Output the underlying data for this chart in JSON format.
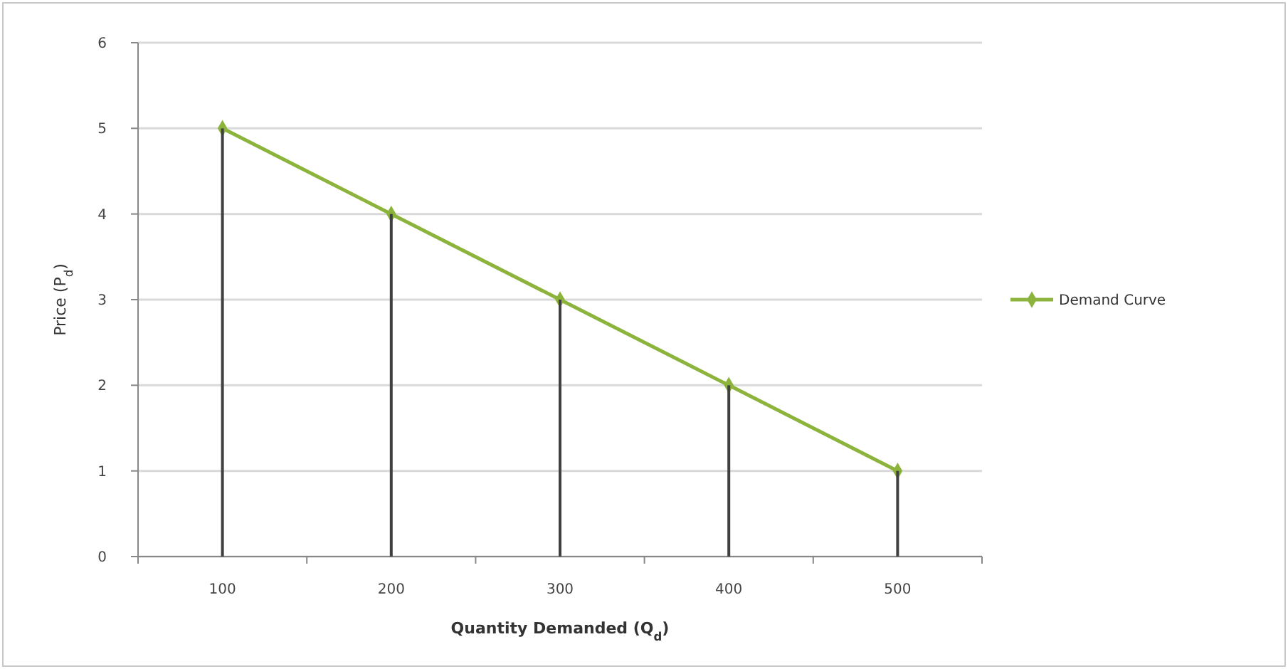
{
  "chart_data": {
    "type": "line",
    "xlabel": "Quantity Demanded (Q$_{d}$)",
    "ylabel": "Price (P$_{d}$)",
    "categories": [
      "100",
      "200",
      "300",
      "400",
      "500"
    ],
    "series": [
      {
        "type": "bar",
        "color": "#404040",
        "values": [
          5,
          4,
          3,
          2,
          1
        ]
      },
      {
        "name": "Demand Curve",
        "color": "#8cb43c",
        "values": [
          5,
          4,
          3,
          2,
          1
        ]
      }
    ],
    "ylim": [
      0,
      6
    ],
    "yticks": [
      0,
      1,
      2,
      3,
      4,
      5,
      6
    ],
    "grid": "y",
    "legend": "right",
    "marker": "diamond"
  }
}
